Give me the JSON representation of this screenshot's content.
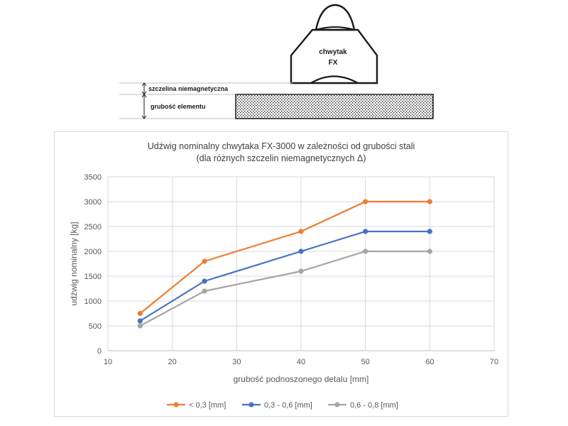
{
  "diagram": {
    "gripper_label_line1": "chwytak",
    "gripper_label_line2": "FX",
    "gap_label": "szczelina niemagnetyczna",
    "thickness_label": "grubość elementu"
  },
  "chart_data": {
    "type": "line",
    "title": "Udźwig nominalny chwytaka FX-3000 w zależności od grubości stali",
    "subtitle": "(dla różnych szczelin niemagnetycznych Δ)",
    "xlabel": "grubość podnoszonego detalu [mm]",
    "ylabel": "udźwig nominalny [kg]",
    "xlim": [
      10,
      70
    ],
    "ylim": [
      0,
      3500
    ],
    "xticks": [
      10,
      20,
      30,
      40,
      50,
      60,
      70
    ],
    "yticks": [
      0,
      500,
      1000,
      1500,
      2000,
      2500,
      3000,
      3500
    ],
    "grid": true,
    "legend_position": "bottom",
    "x": [
      15,
      25,
      40,
      50,
      60
    ],
    "series": [
      {
        "name": "< 0,3 [mm]",
        "color": "#ED7D31",
        "values": [
          750,
          1800,
          2400,
          3000,
          3000
        ]
      },
      {
        "name": "0,3 - 0,6 [mm]",
        "color": "#4472C4",
        "values": [
          600,
          1400,
          2000,
          2400,
          2400
        ]
      },
      {
        "name": "0,6 - 0,8 [mm]",
        "color": "#A5A5A5",
        "values": [
          500,
          1200,
          1600,
          2000,
          2000
        ]
      }
    ]
  }
}
